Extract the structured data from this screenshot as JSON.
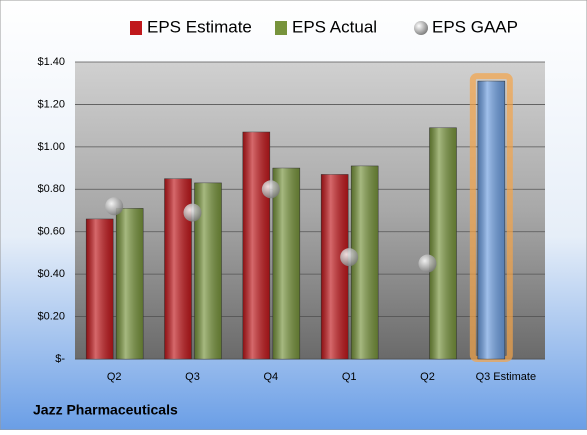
{
  "chart_data": {
    "type": "bar",
    "title": "Jazz Pharmaceuticals",
    "categories": [
      "Q2",
      "Q3",
      "Q4",
      "Q1",
      "Q2",
      "Q3 Estimate"
    ],
    "series": [
      {
        "name": "EPS Estimate",
        "color": "#c0181c",
        "values": [
          0.66,
          0.85,
          1.07,
          0.87,
          null,
          1.31
        ]
      },
      {
        "name": "EPS Actual",
        "color": "#77933c",
        "values": [
          0.71,
          0.83,
          0.9,
          0.91,
          1.09,
          null
        ]
      },
      {
        "name": "EPS GAAP",
        "color": "#a6a6a6",
        "marker": "circle",
        "values": [
          0.72,
          0.69,
          0.8,
          0.48,
          0.45,
          null
        ]
      }
    ],
    "highlight": {
      "series": 0,
      "index": 5,
      "color": "#6d9ee0",
      "glow": "#f4a448"
    },
    "ylim": [
      0,
      1.4
    ],
    "yticks": [
      {
        "value": 0,
        "label": "$-"
      },
      {
        "value": 0.2,
        "label": "$0.20"
      },
      {
        "value": 0.4,
        "label": "$0.40"
      },
      {
        "value": 0.6,
        "label": "$0.60"
      },
      {
        "value": 0.8,
        "label": "$0.80"
      },
      {
        "value": 1.0,
        "label": "$1.00"
      },
      {
        "value": 1.2,
        "label": "$1.20"
      },
      {
        "value": 1.4,
        "label": "$1.40"
      }
    ],
    "grid": true
  }
}
